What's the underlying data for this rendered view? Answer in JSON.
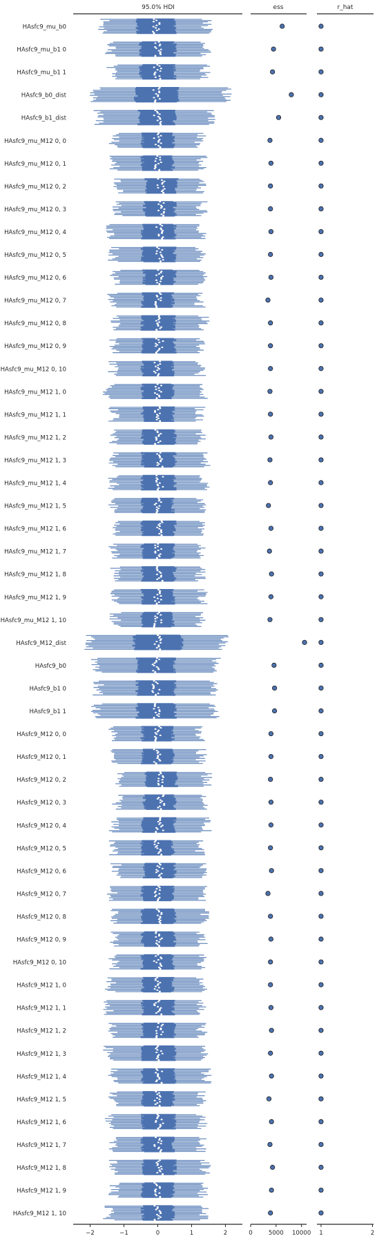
{
  "colors": {
    "hdi_fill": "#4c72b0",
    "hdi_line": "#6c8ebf",
    "median_point": "#ffffff",
    "marker_fill": "#4c72b0",
    "marker_edge": "#1a1a1a",
    "axis": "#262626"
  },
  "chart_data": [
    {
      "type": "forest",
      "title": "95.0% HDI",
      "xlim": [
        -2.5,
        2.5
      ],
      "xticks": [
        -2,
        -1,
        0,
        1,
        2
      ],
      "xticklabels": [
        "−2",
        "−1",
        "0",
        "1",
        "2"
      ],
      "chains": 12,
      "rows": [
        {
          "label": "HAsfc9_mu_b0",
          "center": -0.05,
          "iqr": [
            -0.6,
            0.5
          ],
          "hdi": [
            -1.6,
            1.45
          ]
        },
        {
          "label": "HAsfc9_mu_b1 0",
          "center": 0.0,
          "iqr": [
            -0.5,
            0.5
          ],
          "hdi": [
            -1.4,
            1.4
          ]
        },
        {
          "label": "HAsfc9_mu_b1 1",
          "center": 0.0,
          "iqr": [
            -0.5,
            0.5
          ],
          "hdi": [
            -1.35,
            1.4
          ]
        },
        {
          "label": "HAsfc9_b0_dist",
          "center": -0.05,
          "iqr": [
            -0.65,
            0.6
          ],
          "hdi": [
            -1.85,
            2.05
          ]
        },
        {
          "label": "HAsfc9_b1_dist",
          "center": 0.0,
          "iqr": [
            -0.55,
            0.5
          ],
          "hdi": [
            -1.75,
            1.6
          ]
        },
        {
          "label": "HAsfc9_mu_M12 0, 0",
          "center": 0.0,
          "iqr": [
            -0.45,
            0.45
          ],
          "hdi": [
            -1.3,
            1.25
          ]
        },
        {
          "label": "HAsfc9_mu_M12 0, 1",
          "center": 0.0,
          "iqr": [
            -0.45,
            0.45
          ],
          "hdi": [
            -1.25,
            1.3
          ]
        },
        {
          "label": "HAsfc9_mu_M12 0, 2",
          "center": 0.1,
          "iqr": [
            -0.35,
            0.55
          ],
          "hdi": [
            -1.15,
            1.3
          ]
        },
        {
          "label": "HAsfc9_mu_M12 0, 3",
          "center": 0.1,
          "iqr": [
            -0.4,
            0.5
          ],
          "hdi": [
            -1.2,
            1.3
          ]
        },
        {
          "label": "HAsfc9_mu_M12 0, 4",
          "center": 0.05,
          "iqr": [
            -0.45,
            0.5
          ],
          "hdi": [
            -1.4,
            1.3
          ]
        },
        {
          "label": "HAsfc9_mu_M12 0, 5",
          "center": 0.05,
          "iqr": [
            -0.45,
            0.5
          ],
          "hdi": [
            -1.3,
            1.25
          ]
        },
        {
          "label": "HAsfc9_mu_M12 0, 6",
          "center": 0.05,
          "iqr": [
            -0.4,
            0.5
          ],
          "hdi": [
            -1.25,
            1.3
          ]
        },
        {
          "label": "HAsfc9_mu_M12 0, 7",
          "center": 0.0,
          "iqr": [
            -0.45,
            0.45
          ],
          "hdi": [
            -1.35,
            1.25
          ]
        },
        {
          "label": "HAsfc9_mu_M12 0, 8",
          "center": 0.05,
          "iqr": [
            -0.45,
            0.5
          ],
          "hdi": [
            -1.25,
            1.35
          ]
        },
        {
          "label": "HAsfc9_mu_M12 0, 9",
          "center": 0.05,
          "iqr": [
            -0.45,
            0.5
          ],
          "hdi": [
            -1.3,
            1.3
          ]
        },
        {
          "label": "HAsfc9_mu_M12 0, 10",
          "center": 0.0,
          "iqr": [
            -0.45,
            0.45
          ],
          "hdi": [
            -1.3,
            1.25
          ]
        },
        {
          "label": "HAsfc9_mu_M12 1, 0",
          "center": 0.0,
          "iqr": [
            -0.45,
            0.45
          ],
          "hdi": [
            -1.45,
            1.3
          ]
        },
        {
          "label": "HAsfc9_mu_M12 1, 1",
          "center": 0.0,
          "iqr": [
            -0.45,
            0.45
          ],
          "hdi": [
            -1.3,
            1.25
          ]
        },
        {
          "label": "HAsfc9_mu_M12 1, 2",
          "center": 0.0,
          "iqr": [
            -0.45,
            0.5
          ],
          "hdi": [
            -1.3,
            1.3
          ]
        },
        {
          "label": "HAsfc9_mu_M12 1, 3",
          "center": 0.05,
          "iqr": [
            -0.45,
            0.5
          ],
          "hdi": [
            -1.3,
            1.4
          ]
        },
        {
          "label": "HAsfc9_mu_M12 1, 4",
          "center": 0.05,
          "iqr": [
            -0.45,
            0.5
          ],
          "hdi": [
            -1.3,
            1.4
          ]
        },
        {
          "label": "HAsfc9_mu_M12 1, 5",
          "center": 0.0,
          "iqr": [
            -0.45,
            0.45
          ],
          "hdi": [
            -1.3,
            1.3
          ]
        },
        {
          "label": "HAsfc9_mu_M12 1, 6",
          "center": 0.05,
          "iqr": [
            -0.45,
            0.5
          ],
          "hdi": [
            -1.25,
            1.35
          ]
        },
        {
          "label": "HAsfc9_mu_M12 1, 7",
          "center": 0.0,
          "iqr": [
            -0.45,
            0.45
          ],
          "hdi": [
            -1.3,
            1.3
          ]
        },
        {
          "label": "HAsfc9_mu_M12 1, 8",
          "center": 0.05,
          "iqr": [
            -0.45,
            0.5
          ],
          "hdi": [
            -1.25,
            1.25
          ]
        },
        {
          "label": "HAsfc9_mu_M12 1, 9",
          "center": 0.0,
          "iqr": [
            -0.45,
            0.45
          ],
          "hdi": [
            -1.3,
            1.3
          ]
        },
        {
          "label": "HAsfc9_mu_M12 1, 10",
          "center": 0.0,
          "iqr": [
            -0.45,
            0.45
          ],
          "hdi": [
            -1.25,
            1.25
          ]
        },
        {
          "label": "HAsfc9_M12_dist",
          "center": 0.0,
          "iqr": [
            -0.7,
            0.7
          ],
          "hdi": [
            -2.0,
            1.95
          ]
        },
        {
          "label": "HAsfc9_b0",
          "center": -0.05,
          "iqr": [
            -0.6,
            0.5
          ],
          "hdi": [
            -1.8,
            1.7
          ]
        },
        {
          "label": "HAsfc9_b1 0",
          "center": -0.05,
          "iqr": [
            -0.6,
            0.5
          ],
          "hdi": [
            -1.75,
            1.65
          ]
        },
        {
          "label": "HAsfc9_b1 1",
          "center": -0.05,
          "iqr": [
            -0.6,
            0.5
          ],
          "hdi": [
            -1.8,
            1.65
          ]
        },
        {
          "label": "HAsfc9_M12 0, 0",
          "center": 0.0,
          "iqr": [
            -0.45,
            0.45
          ],
          "hdi": [
            -1.3,
            1.25
          ]
        },
        {
          "label": "HAsfc9_M12 0, 1",
          "center": 0.0,
          "iqr": [
            -0.45,
            0.45
          ],
          "hdi": [
            -1.3,
            1.3
          ]
        },
        {
          "label": "HAsfc9_M12 0, 2",
          "center": 0.1,
          "iqr": [
            -0.35,
            0.55
          ],
          "hdi": [
            -1.15,
            1.45
          ]
        },
        {
          "label": "HAsfc9_M12 0, 3",
          "center": 0.1,
          "iqr": [
            -0.4,
            0.5
          ],
          "hdi": [
            -1.2,
            1.35
          ]
        },
        {
          "label": "HAsfc9_M12 0, 4",
          "center": 0.05,
          "iqr": [
            -0.45,
            0.5
          ],
          "hdi": [
            -1.3,
            1.45
          ]
        },
        {
          "label": "HAsfc9_M12 0, 5",
          "center": 0.0,
          "iqr": [
            -0.45,
            0.45
          ],
          "hdi": [
            -1.3,
            1.25
          ]
        },
        {
          "label": "HAsfc9_M12 0, 6",
          "center": 0.05,
          "iqr": [
            -0.4,
            0.5
          ],
          "hdi": [
            -1.25,
            1.3
          ]
        },
        {
          "label": "HAsfc9_M12 0, 7",
          "center": 0.0,
          "iqr": [
            -0.45,
            0.45
          ],
          "hdi": [
            -1.35,
            1.3
          ]
        },
        {
          "label": "HAsfc9_M12 0, 8",
          "center": 0.05,
          "iqr": [
            -0.45,
            0.5
          ],
          "hdi": [
            -1.3,
            1.35
          ]
        },
        {
          "label": "HAsfc9_M12 0, 9",
          "center": 0.05,
          "iqr": [
            -0.45,
            0.5
          ],
          "hdi": [
            -1.3,
            1.3
          ]
        },
        {
          "label": "HAsfc9_M12 0, 10",
          "center": 0.0,
          "iqr": [
            -0.45,
            0.45
          ],
          "hdi": [
            -1.3,
            1.3
          ]
        },
        {
          "label": "HAsfc9_M12 1, 0",
          "center": 0.0,
          "iqr": [
            -0.45,
            0.45
          ],
          "hdi": [
            -1.4,
            1.3
          ]
        },
        {
          "label": "HAsfc9_M12 1, 1",
          "center": 0.0,
          "iqr": [
            -0.45,
            0.45
          ],
          "hdi": [
            -1.45,
            1.3
          ]
        },
        {
          "label": "HAsfc9_M12 1, 2",
          "center": 0.05,
          "iqr": [
            -0.45,
            0.5
          ],
          "hdi": [
            -1.3,
            1.3
          ]
        },
        {
          "label": "HAsfc9_M12 1, 3",
          "center": 0.05,
          "iqr": [
            -0.45,
            0.5
          ],
          "hdi": [
            -1.45,
            1.4
          ]
        },
        {
          "label": "HAsfc9_M12 1, 4",
          "center": 0.05,
          "iqr": [
            -0.45,
            0.5
          ],
          "hdi": [
            -1.3,
            1.45
          ]
        },
        {
          "label": "HAsfc9_M12 1, 5",
          "center": 0.0,
          "iqr": [
            -0.45,
            0.45
          ],
          "hdi": [
            -1.3,
            1.3
          ]
        },
        {
          "label": "HAsfc9_M12 1, 6",
          "center": 0.05,
          "iqr": [
            -0.45,
            0.5
          ],
          "hdi": [
            -1.45,
            1.3
          ]
        },
        {
          "label": "HAsfc9_M12 1, 7",
          "center": 0.0,
          "iqr": [
            -0.45,
            0.45
          ],
          "hdi": [
            -1.35,
            1.3
          ]
        },
        {
          "label": "HAsfc9_M12 1, 8",
          "center": 0.05,
          "iqr": [
            -0.45,
            0.5
          ],
          "hdi": [
            -1.3,
            1.4
          ]
        },
        {
          "label": "HAsfc9_M12 1, 9",
          "center": 0.0,
          "iqr": [
            -0.45,
            0.45
          ],
          "hdi": [
            -1.3,
            1.35
          ]
        },
        {
          "label": "HAsfc9_M12 1, 10",
          "center": 0.0,
          "iqr": [
            -0.45,
            0.45
          ],
          "hdi": [
            -1.45,
            1.35
          ]
        }
      ]
    },
    {
      "type": "scatter",
      "title": "ess",
      "xlim": [
        0,
        11000
      ],
      "xticks": [
        0,
        5000,
        10000
      ],
      "xticklabels": [
        "0",
        "5000",
        "10000"
      ],
      "values": [
        6200,
        4500,
        4300,
        8000,
        5500,
        3800,
        4000,
        3900,
        3900,
        4000,
        3900,
        4000,
        3400,
        3900,
        3900,
        3900,
        3800,
        3900,
        4000,
        3800,
        3900,
        3500,
        4000,
        3700,
        4100,
        4000,
        3800,
        10600,
        4600,
        4700,
        4700,
        4000,
        4000,
        3900,
        4000,
        4000,
        3900,
        4100,
        3400,
        3900,
        4000,
        3900,
        3900,
        4000,
        4100,
        3900,
        4100,
        3600,
        4100,
        3800,
        4300,
        4100,
        3900
      ]
    },
    {
      "type": "scatter",
      "title": "r_hat",
      "xlim": [
        0.92,
        2.02
      ],
      "xticks": [
        1,
        2
      ],
      "xticklabels": [
        "1",
        "2"
      ],
      "values": [
        1,
        1,
        1,
        1,
        1,
        1,
        1,
        1,
        1,
        1,
        1,
        1,
        1,
        1,
        1,
        1,
        1,
        1,
        1,
        1,
        1,
        1,
        1,
        1,
        1,
        1,
        1,
        1,
        1,
        1,
        1,
        1,
        1,
        1,
        1,
        1,
        1,
        1,
        1,
        1,
        1,
        1,
        1,
        1,
        1,
        1,
        1,
        1,
        1,
        1,
        1,
        1,
        1
      ]
    }
  ]
}
